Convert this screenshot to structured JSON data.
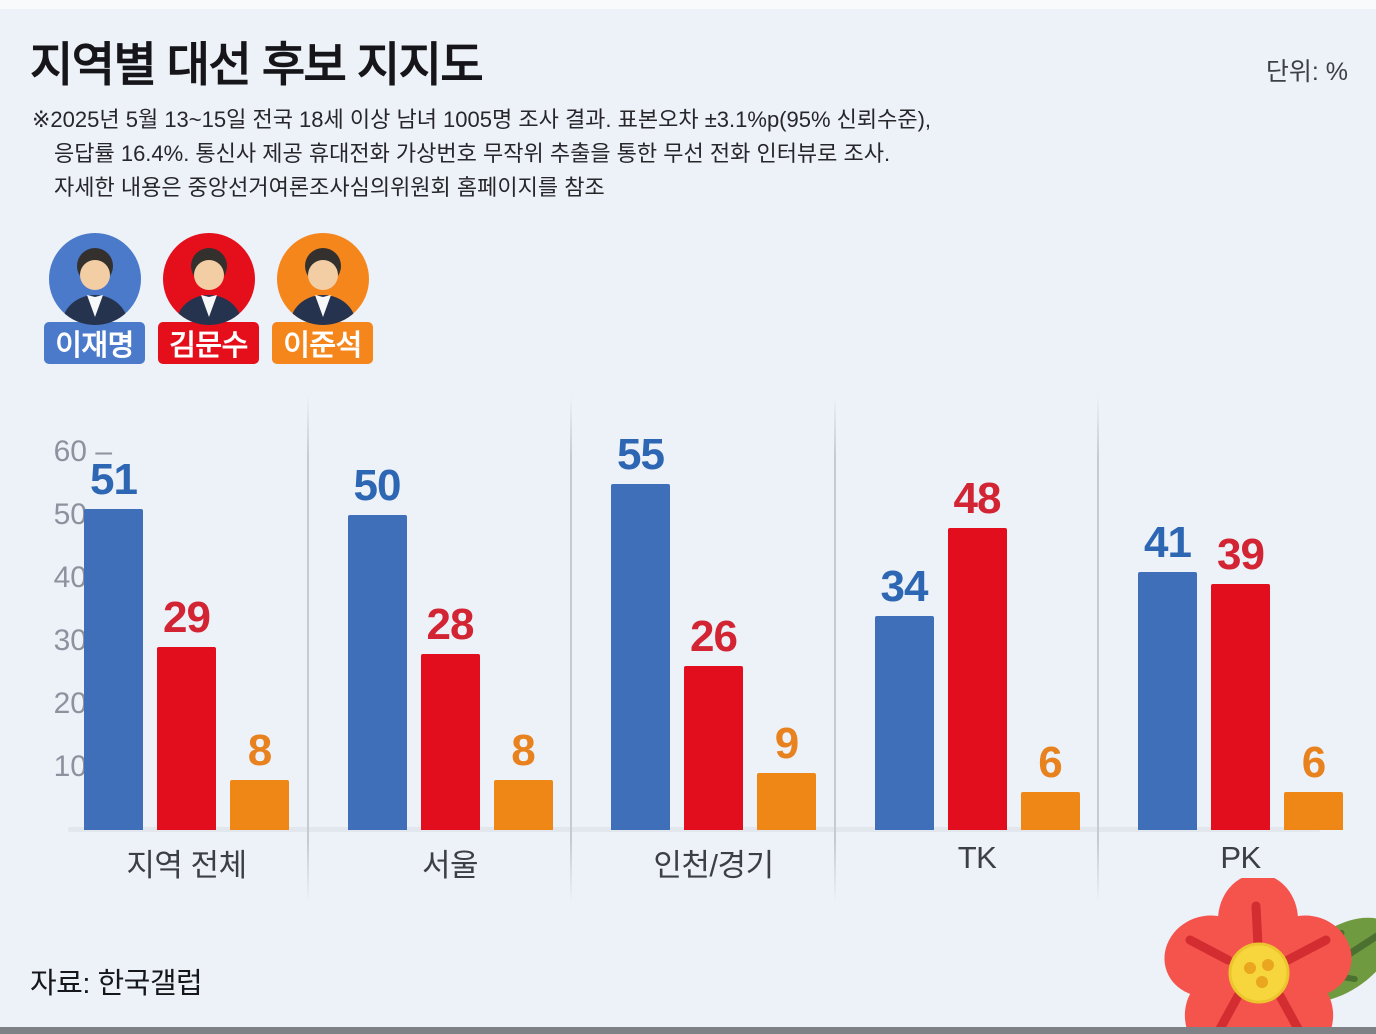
{
  "header": {
    "title": "지역별 대선 후보 지지도",
    "unit_label": "단위: %",
    "note_lines": [
      "※2025년 5월 13~15일 전국 18세 이상 남녀 1005명 조사 결과. 표본오차 ±3.1%p(95% 신뢰수준),",
      "응답률 16.4%. 통신사 제공 휴대전화 가상번호 무작위 추출을 통한 무선 전화 인터뷰로 조사.",
      "자세한 내용은 중앙선거여론조사심의위원회 홈페이지를 참조"
    ]
  },
  "candidates": [
    {
      "name": "이재명",
      "color": "#4a7ac9"
    },
    {
      "name": "김문수",
      "color": "#e50f1c"
    },
    {
      "name": "이준석",
      "color": "#f5861c"
    }
  ],
  "chart_data": {
    "type": "bar",
    "categories": [
      "지역 전체",
      "서울",
      "인천/경기",
      "TK",
      "PK"
    ],
    "series": [
      {
        "name": "이재명",
        "bar_color": "#3f6fb8",
        "label_color": "#2d66b2",
        "values": [
          51,
          50,
          55,
          34,
          41
        ]
      },
      {
        "name": "김문수",
        "bar_color": "#e20d1d",
        "label_color": "#d32433",
        "values": [
          29,
          28,
          26,
          48,
          39
        ]
      },
      {
        "name": "이준석",
        "bar_color": "#ef8717",
        "label_color": "#e8821e",
        "values": [
          8,
          8,
          9,
          6,
          6
        ]
      }
    ],
    "title": "지역별 대선 후보 지지도",
    "xlabel": "",
    "ylabel": "%",
    "ylim": [
      0,
      64
    ],
    "yticks": [
      10,
      20,
      30,
      40,
      50,
      60
    ],
    "grid": false,
    "legend_position": "top-left-avatars"
  },
  "footer": {
    "source": "자료: 한국갤럽"
  }
}
